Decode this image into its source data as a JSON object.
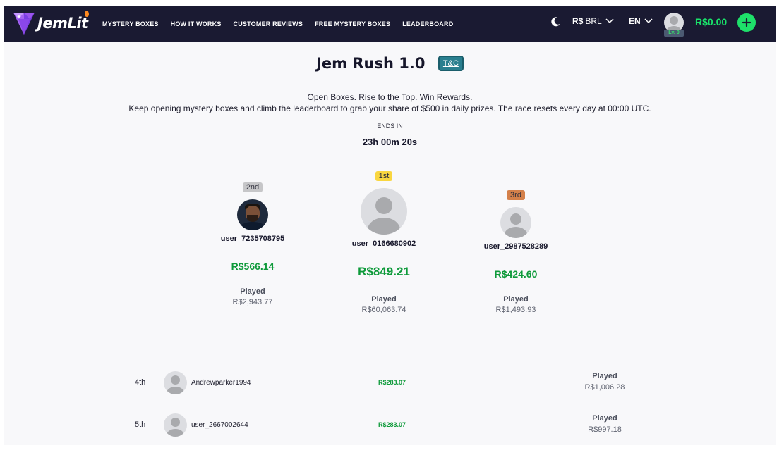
{
  "nav": {
    "logo_text": "JemLit",
    "links": [
      "MYSTERY BOXES",
      "HOW IT WORKS",
      "CUSTOMER REVIEWS",
      "FREE MYSTERY BOXES",
      "LEADERBOARD"
    ],
    "currency_symbol": "R$",
    "currency_code": "BRL",
    "language": "EN",
    "level_badge": "Lv. 0",
    "balance": "R$0.00",
    "theme_icon": "moon-icon",
    "add_icon": "plus-icon"
  },
  "hero": {
    "title": "Jem Rush 1.0",
    "tc_label": "T&C",
    "tagline": "Open Boxes. Rise to the Top. Win Rewards.",
    "description": "Keep opening mystery boxes and climb the leaderboard to grab your share of $500 in daily prizes. The race resets every day at 00:00 UTC.",
    "ends_label": "ENDS IN",
    "countdown": "23h 00m 20s"
  },
  "podium": {
    "played_label": "Played",
    "first": {
      "rank": "1st",
      "name": "user_0166680902",
      "amount": "R$849.21",
      "played": "R$60,063.74"
    },
    "second": {
      "rank": "2nd",
      "name": "user_7235708795",
      "amount": "R$566.14",
      "played": "R$2,943.77"
    },
    "third": {
      "rank": "3rd",
      "name": "user_2987528289",
      "amount": "R$424.60",
      "played": "R$1,493.93"
    }
  },
  "list": {
    "played_label": "Played",
    "rows": [
      {
        "rank": "4th",
        "name": "Andrewparker1994",
        "amount": "R$283.07",
        "played": "R$1,006.28"
      },
      {
        "rank": "5th",
        "name": "user_2667002644",
        "amount": "R$283.07",
        "played": "R$997.18"
      }
    ]
  },
  "colors": {
    "navbar": "#1a1a32",
    "accent_green": "#1ee06a",
    "amount_green": "#0e9a3a",
    "gold": "#f9d640",
    "silver": "#c6c6c8",
    "bronze": "#d4804a",
    "tc_button": "#2a7f8f"
  }
}
